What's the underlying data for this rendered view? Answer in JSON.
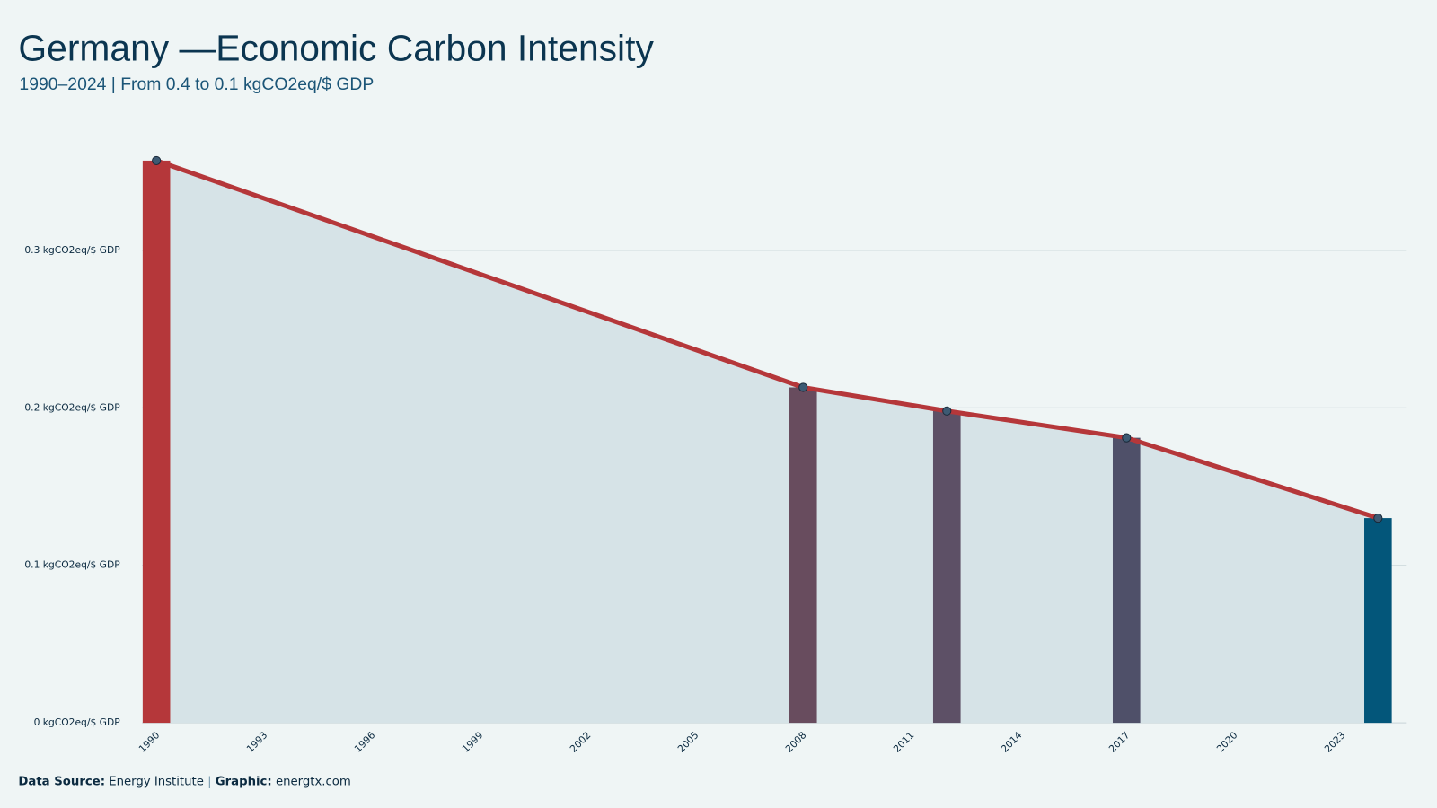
{
  "chart_data": {
    "type": "combo",
    "title": "Germany —Economic Carbon Intensity",
    "subtitle": "1990–2024 | From 0.4 to 0.1 kgCO2eq/$ GDP",
    "x": [
      1990,
      2008,
      2012,
      2017,
      2024
    ],
    "values": [
      0.357,
      0.213,
      0.198,
      0.181,
      0.13
    ],
    "bar_colors": [
      "#b5373a",
      "#684c5e",
      "#5d5066",
      "#4f5069",
      "#03567a"
    ],
    "line_color": "#b5373a",
    "area_color": "#d6e3e7",
    "marker_color": "#3d5a73",
    "xlim": [
      1989.6,
      2024.8
    ],
    "xticks": [
      1990,
      1993,
      1996,
      1999,
      2002,
      2005,
      2008,
      2011,
      2014,
      2017,
      2020,
      2023
    ],
    "ylim": [
      0,
      0.37
    ],
    "yticks": [
      {
        "value": 0,
        "label": "0 kgCO2eq/$ GDP"
      },
      {
        "value": 0.1,
        "label": "0.1 kgCO2eq/$ GDP"
      },
      {
        "value": 0.2,
        "label": "0.2 kgCO2eq/$ GDP"
      },
      {
        "value": 0.3,
        "label": "0.3 kgCO2eq/$ GDP"
      }
    ],
    "grid": true,
    "footer": {
      "source_label": "Data Source:",
      "source": "Energy Institute",
      "separator": "|",
      "credit_label": "Graphic:",
      "credit": "energtx.com"
    }
  }
}
